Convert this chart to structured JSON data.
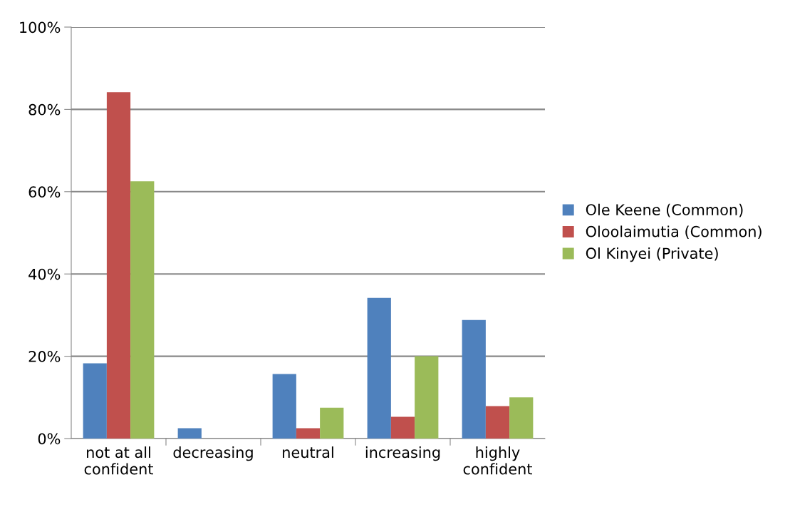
{
  "chart_data": {
    "type": "bar",
    "categories": [
      "not at all\nconfident",
      "decreasing",
      "neutral",
      "increasing",
      "highly\nconfident"
    ],
    "series": [
      {
        "name": "Ole Keene (Common)",
        "color": "#4f81bd",
        "values": [
          18.3,
          2.5,
          15.7,
          34.2,
          28.8
        ]
      },
      {
        "name": "Oloolaimutia (Common)",
        "color": "#c0504d",
        "values": [
          84.2,
          0,
          2.5,
          5.3,
          7.9
        ]
      },
      {
        "name": "Ol Kinyei (Private)",
        "color": "#9bbb59",
        "values": [
          62.5,
          0,
          7.5,
          20,
          10
        ]
      }
    ],
    "ylim": [
      0,
      100
    ],
    "yticks": [
      {
        "value": 0,
        "label": "0%"
      },
      {
        "value": 20,
        "label": "20%"
      },
      {
        "value": 40,
        "label": "40%"
      },
      {
        "value": 60,
        "label": "60%"
      },
      {
        "value": 80,
        "label": "80%"
      },
      {
        "value": 100,
        "label": "100%"
      }
    ],
    "grid": "y",
    "legend": "right"
  }
}
